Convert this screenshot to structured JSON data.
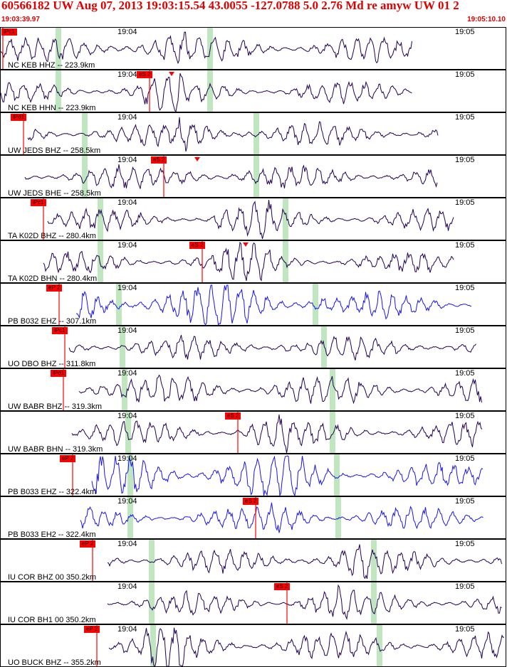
{
  "header": {
    "title": "60566182 UW Aug 07, 2013 19:03:15.54    43.0055 -127.0788  5.0 2.76 Md re amyw UW 01   2",
    "start_time": "19:03:39.97",
    "end_time": "19:05:10.10"
  },
  "colors": {
    "header_red": "#e00000",
    "trace_purple": "#220055",
    "trace_blue": "#1a14f0",
    "pick_red": "#ff0000",
    "green_band": "#bfe6bf"
  },
  "panels": [
    {
      "label": "NC KEB HHZ -- 223.9km",
      "pick": "iPc1",
      "t1": "19:04",
      "t2": "19:05",
      "color": "purple"
    },
    {
      "label": "NC KEB HHN -- 223.9km",
      "pick": "eS 2",
      "t1": "19:04",
      "t2": "19:05",
      "color": "purple"
    },
    {
      "label": "UW JEDS BHZ -- 258.5km",
      "pick": "iPd1",
      "t1": "19:04",
      "t2": "19:05",
      "color": "purple"
    },
    {
      "label": "UW JEDS BHE -- 258.5km",
      "pick": "eS 2",
      "t1": "19:04",
      "t2": "19:05",
      "color": "purple"
    },
    {
      "label": "TA K02D BHZ -- 280.4km",
      "pick": "iPc1",
      "t1": "19:04",
      "t2": "19:05",
      "color": "purple"
    },
    {
      "label": "TA K02D BHN -- 280.4km",
      "pick": "eS 2",
      "t1": "19:04",
      "t2": "19:05",
      "color": "purple"
    },
    {
      "label": "PB B032 EHZ -- 307.1km",
      "pick": "eP 2",
      "t1": "19:04",
      "t2": "19:05",
      "color": "blue"
    },
    {
      "label": "UO DBO BHZ -- 311.8km",
      "pick": "iPc1",
      "t1": "19:04",
      "t2": "19:05",
      "color": "purple"
    },
    {
      "label": "UW BABR BHZ -- 319.3km",
      "pick": "iPd1",
      "t1": "19:04",
      "t2": "19:05",
      "color": "purple"
    },
    {
      "label": "UW BABR BHN -- 319.3km",
      "pick": "eS 2",
      "t1": "19:04",
      "t2": "19:05",
      "color": "purple"
    },
    {
      "label": "PB B033 EHZ -- 322.4km",
      "pick": "eP 2",
      "t1": "19:04",
      "t2": "19:05",
      "color": "blue"
    },
    {
      "label": "PB B033 EH2 -- 322.4km",
      "pick": "eS 2",
      "t1": "19:04",
      "t2": "19:05",
      "color": "blue"
    },
    {
      "label": "IU COR BHZ 00 350.2km",
      "pick": "eP 2",
      "t1": "19:04",
      "t2": "19:05",
      "color": "purple"
    },
    {
      "label": "IU COR BH1 00 350.2km",
      "pick": "eS 2",
      "t1": "19:04",
      "t2": "19:05",
      "color": "purple"
    },
    {
      "label": "UO BUCK BHZ -- 355.2km",
      "pick": "eP 2",
      "t1": "19:04",
      "t2": "19:05",
      "color": "purple"
    }
  ]
}
